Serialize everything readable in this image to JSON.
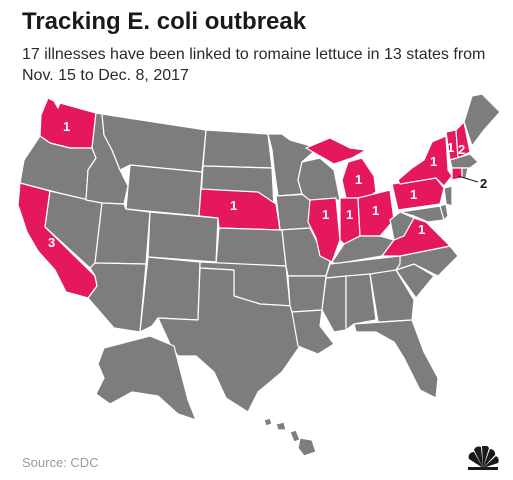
{
  "header": {
    "title": "Tracking E. coli outbreak",
    "subtitle": "17 illnesses have been linked to romaine lettuce in 13 states from Nov. 15 to Dec. 8, 2017"
  },
  "footer": {
    "source": "Source: CDC"
  },
  "colors": {
    "highlight": "#e5175f",
    "base": "#7d7d7d",
    "border": "#ffffff"
  },
  "logo": {
    "icon": "nbc-peacock-icon"
  },
  "map": {
    "states": [
      {
        "id": "WA",
        "count": "1"
      },
      {
        "id": "CA",
        "count": "3"
      },
      {
        "id": "NE",
        "count": "1"
      },
      {
        "id": "IL",
        "count": "1"
      },
      {
        "id": "IN",
        "count": "1"
      },
      {
        "id": "MI",
        "count": "1"
      },
      {
        "id": "OH",
        "count": "1"
      },
      {
        "id": "PA",
        "count": "1"
      },
      {
        "id": "NY",
        "count": "1"
      },
      {
        "id": "VT",
        "count": "1"
      },
      {
        "id": "NH",
        "count": "2"
      },
      {
        "id": "CT",
        "count": "2"
      },
      {
        "id": "VA",
        "count": "1"
      }
    ]
  }
}
